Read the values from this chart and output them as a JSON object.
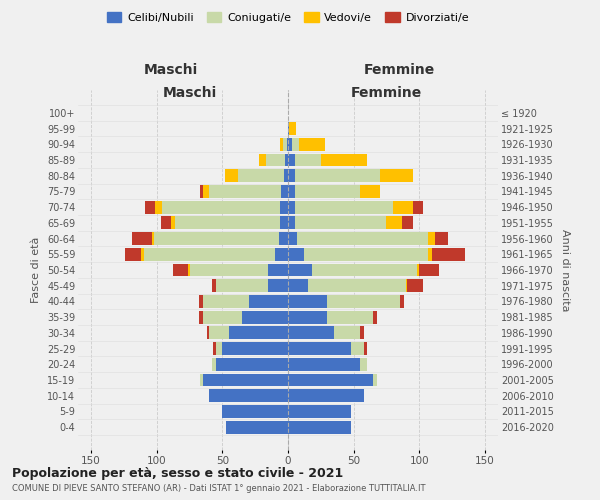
{
  "age_groups": [
    "0-4",
    "5-9",
    "10-14",
    "15-19",
    "20-24",
    "25-29",
    "30-34",
    "35-39",
    "40-44",
    "45-49",
    "50-54",
    "55-59",
    "60-64",
    "65-69",
    "70-74",
    "75-79",
    "80-84",
    "85-89",
    "90-94",
    "95-99",
    "100+"
  ],
  "birth_years": [
    "2016-2020",
    "2011-2015",
    "2006-2010",
    "2001-2005",
    "1996-2000",
    "1991-1995",
    "1986-1990",
    "1981-1985",
    "1976-1980",
    "1971-1975",
    "1966-1970",
    "1961-1965",
    "1956-1960",
    "1951-1955",
    "1946-1950",
    "1941-1945",
    "1936-1940",
    "1931-1935",
    "1926-1930",
    "1921-1925",
    "≤ 1920"
  ],
  "maschi": {
    "celibe": [
      47,
      50,
      60,
      65,
      55,
      50,
      45,
      35,
      30,
      15,
      15,
      10,
      7,
      6,
      6,
      5,
      3,
      2,
      1,
      0,
      0
    ],
    "coniugato": [
      0,
      0,
      0,
      2,
      3,
      5,
      15,
      30,
      35,
      40,
      60,
      100,
      95,
      80,
      90,
      55,
      35,
      15,
      3,
      0,
      0
    ],
    "vedovo": [
      0,
      0,
      0,
      0,
      0,
      0,
      0,
      0,
      0,
      0,
      1,
      2,
      2,
      3,
      5,
      5,
      10,
      5,
      2,
      0,
      0
    ],
    "divorziato": [
      0,
      0,
      0,
      0,
      0,
      2,
      2,
      3,
      3,
      3,
      12,
      12,
      15,
      8,
      8,
      2,
      0,
      0,
      0,
      0,
      0
    ]
  },
  "femmine": {
    "nubile": [
      48,
      48,
      58,
      65,
      55,
      48,
      35,
      30,
      30,
      15,
      18,
      12,
      7,
      5,
      5,
      5,
      5,
      5,
      3,
      1,
      0
    ],
    "coniugata": [
      0,
      0,
      0,
      3,
      5,
      10,
      20,
      35,
      55,
      75,
      80,
      95,
      100,
      70,
      75,
      50,
      65,
      20,
      5,
      0,
      0
    ],
    "vedova": [
      0,
      0,
      0,
      0,
      0,
      0,
      0,
      0,
      0,
      1,
      2,
      3,
      5,
      12,
      15,
      15,
      25,
      35,
      20,
      5,
      0
    ],
    "divorziata": [
      0,
      0,
      0,
      0,
      0,
      2,
      3,
      3,
      3,
      12,
      15,
      25,
      10,
      8,
      8,
      0,
      0,
      0,
      0,
      0,
      0
    ]
  },
  "colors": {
    "celibe": "#4472C4",
    "coniugato": "#c8d9a8",
    "vedovo": "#ffc000",
    "divorziato": "#c0392b"
  },
  "title": "Popolazione per età, sesso e stato civile - 2021",
  "subtitle": "COMUNE DI PIEVE SANTO STEFANO (AR) - Dati ISTAT 1° gennaio 2021 - Elaborazione TUTTITALIA.IT",
  "xlabel_left": "Maschi",
  "xlabel_right": "Femmine",
  "ylabel_left": "Fasce di età",
  "ylabel_right": "Anni di nascita",
  "legend_labels": [
    "Celibi/Nubili",
    "Coniugati/e",
    "Vedovi/e",
    "Divorziati/e"
  ],
  "xlim": 160,
  "background_color": "#f0f0f0"
}
